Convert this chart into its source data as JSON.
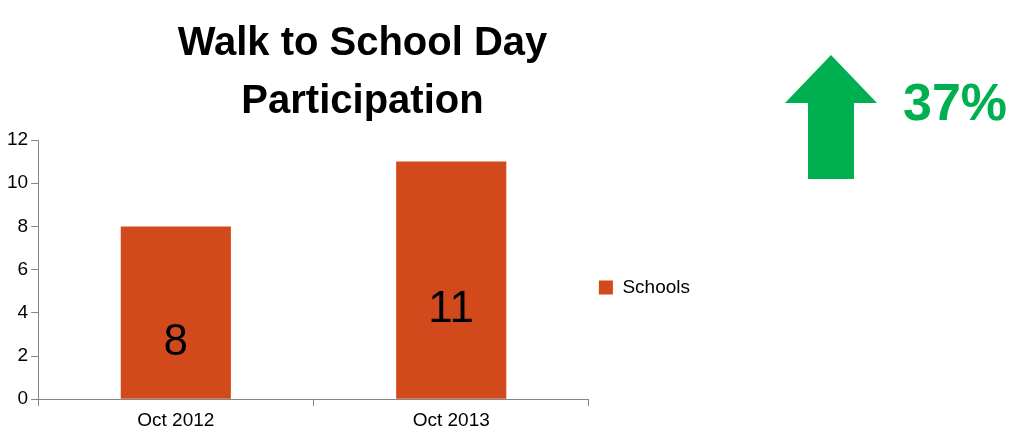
{
  "chart_data": {
    "type": "bar",
    "title": "Walk to School Day Participation",
    "categories": [
      "Oct 2012",
      "Oct 2013"
    ],
    "series": [
      {
        "name": "Schools",
        "color": "#d24a1c",
        "values": [
          8,
          11
        ]
      }
    ],
    "ylim": [
      0,
      12
    ],
    "yticks": [
      0,
      2,
      4,
      6,
      8,
      10,
      12
    ],
    "grid": false,
    "legend": "right",
    "data_labels": true,
    "annotations": [
      "37%"
    ]
  }
}
